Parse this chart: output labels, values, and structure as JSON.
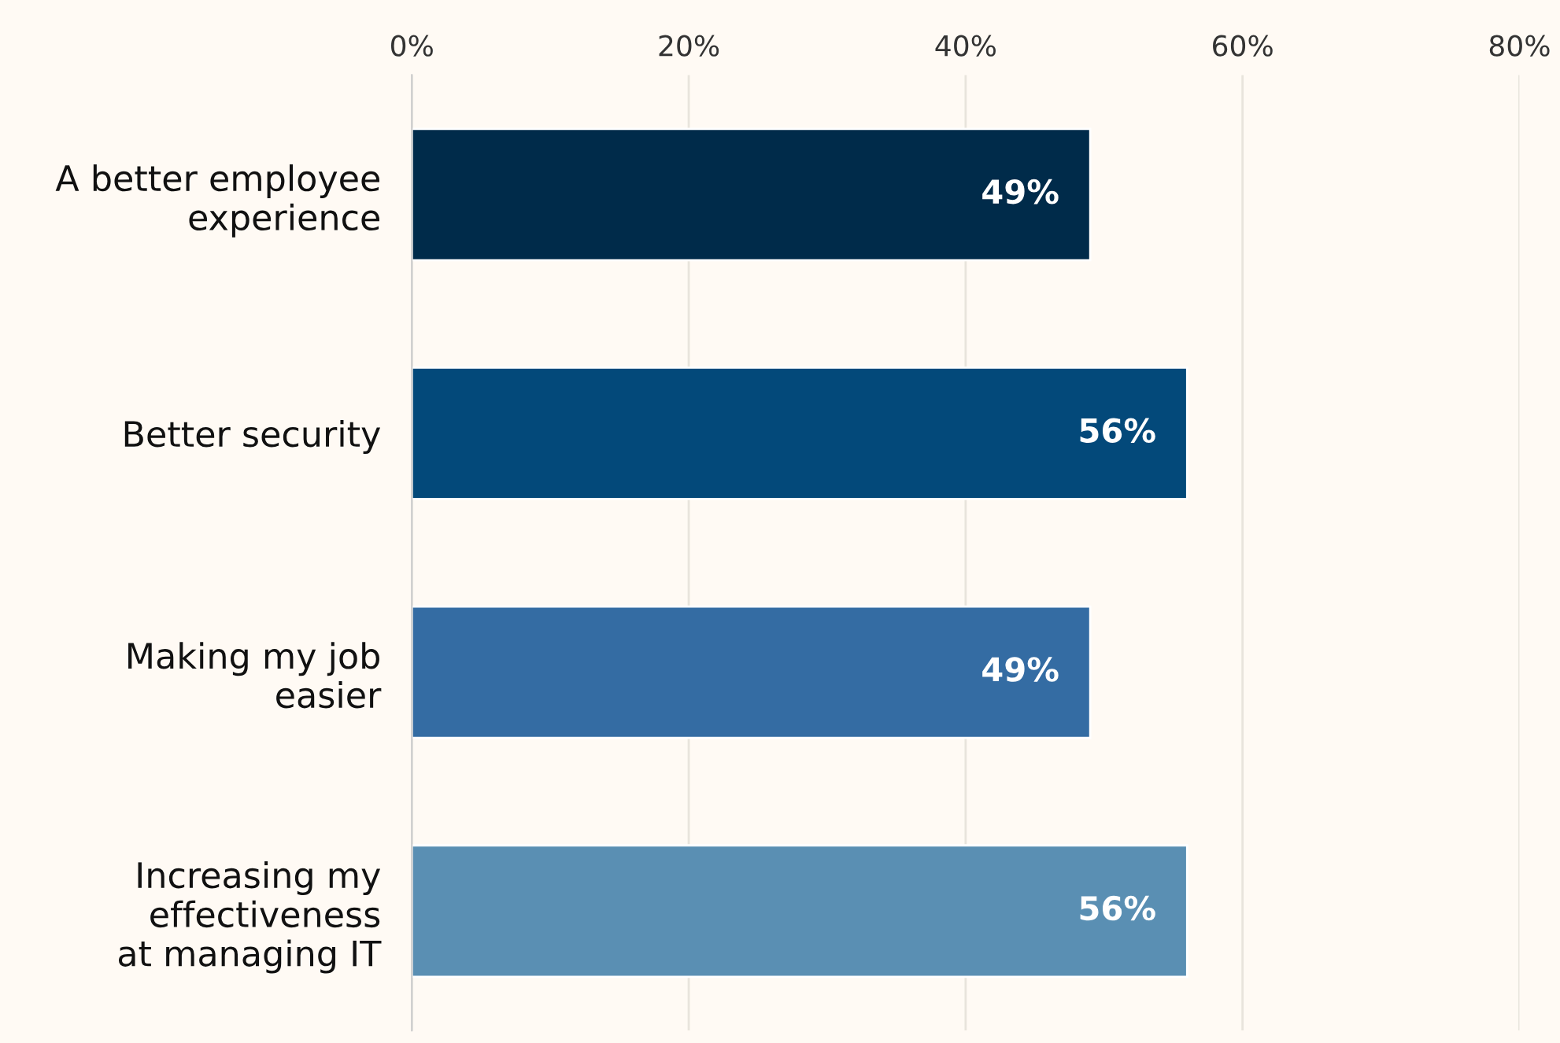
{
  "chart_data": {
    "type": "bar",
    "orientation": "horizontal",
    "categories": [
      "A better employee\nexperience",
      "Better security",
      "Making my job\neasier",
      "Increasing my\neffectiveness\nat managing IT"
    ],
    "values": [
      49,
      56,
      49,
      56
    ],
    "colors": [
      "#002b4a",
      "#03497a",
      "#346ca3",
      "#5a8fb3"
    ],
    "value_labels": [
      "49%",
      "56%",
      "49%",
      "56%"
    ],
    "xlim": [
      0,
      80
    ],
    "xticks": [
      {
        "value": 0,
        "label": "0%"
      },
      {
        "value": 20,
        "label": "20%"
      },
      {
        "value": 40,
        "label": "40%"
      },
      {
        "value": 60,
        "label": "60%"
      },
      {
        "value": 80,
        "label": "80%"
      }
    ],
    "grid": "x"
  }
}
